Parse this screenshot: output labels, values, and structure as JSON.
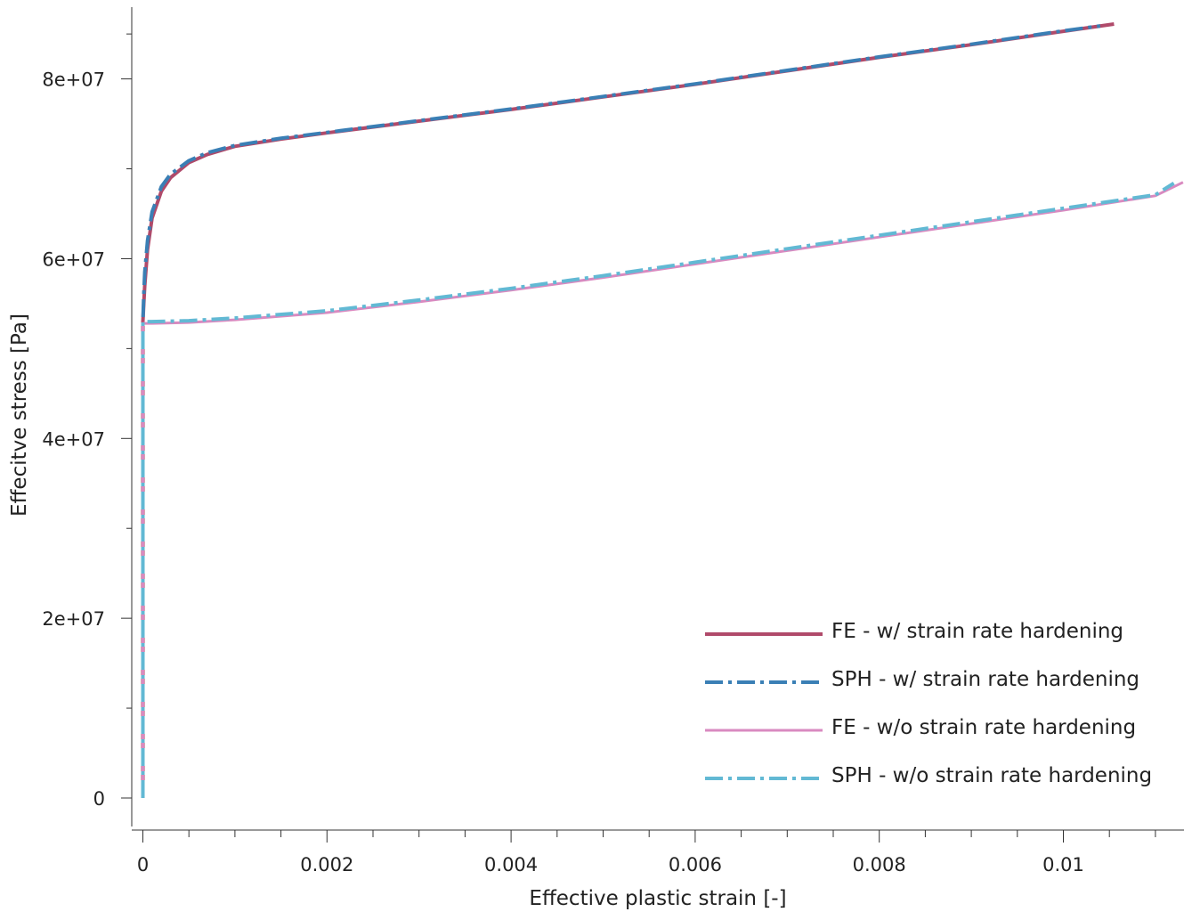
{
  "chart_data": {
    "type": "line",
    "title": "",
    "xlabel": "Effective plastic strain [-]",
    "ylabel": "Effecitve stress [Pa]",
    "xlim": [
      0,
      0.0113
    ],
    "ylim": [
      -3000000,
      88000000
    ],
    "x_ticks": [
      0,
      0.002,
      0.004,
      0.006,
      0.008,
      0.01
    ],
    "x_tick_labels": [
      "0",
      "0.002",
      "0.004",
      "0.006",
      "0.008",
      "0.01"
    ],
    "y_ticks": [
      0,
      20000000,
      40000000,
      60000000,
      80000000
    ],
    "y_tick_labels": [
      "0",
      "2e+07",
      "4e+07",
      "6e+07",
      "8e+07"
    ],
    "grid": false,
    "legend_position": "bottom-right",
    "series": [
      {
        "name": "FE - w/ strain rate hardening",
        "color": "#b04a6a",
        "style": "solid",
        "width": 4,
        "x": [
          0,
          0,
          1e-05,
          2e-05,
          5e-05,
          0.0001,
          0.0002,
          0.0003,
          0.0005,
          0.0007,
          0.001,
          0.0015,
          0.002,
          0.003,
          0.004,
          0.005,
          0.006,
          0.007,
          0.008,
          0.009,
          0.01,
          0.01055
        ],
        "y": [
          0,
          53000000,
          55000000,
          57000000,
          61000000,
          64500000,
          67500000,
          69000000,
          70700000,
          71600000,
          72500000,
          73300000,
          74000000,
          75300000,
          76600000,
          78000000,
          79400000,
          80900000,
          82400000,
          83800000,
          85300000,
          86100000
        ]
      },
      {
        "name": "SPH - w/ strain rate hardening",
        "color": "#3a7fb5",
        "style": "dashdot",
        "width": 4,
        "x": [
          0,
          0,
          1e-05,
          2e-05,
          5e-05,
          0.0001,
          0.0002,
          0.0003,
          0.0005,
          0.0007,
          0.001,
          0.0015,
          0.002,
          0.003,
          0.004,
          0.005,
          0.006,
          0.007,
          0.008,
          0.009,
          0.01,
          0.0104
        ],
        "y": [
          0,
          53000000,
          56000000,
          58500000,
          62000000,
          65200000,
          68000000,
          69400000,
          70900000,
          71800000,
          72600000,
          73400000,
          74050000,
          75350000,
          76650000,
          78050000,
          79450000,
          80950000,
          82450000,
          83850000,
          85350000,
          85900000
        ]
      },
      {
        "name": "FE - w/o strain rate hardening",
        "color": "#d98ac0",
        "style": "solid",
        "width": 3,
        "x": [
          0,
          0,
          0.0001,
          0.0005,
          0.001,
          0.002,
          0.003,
          0.004,
          0.005,
          0.006,
          0.007,
          0.008,
          0.009,
          0.01,
          0.011,
          0.0113
        ],
        "y": [
          0,
          52800000,
          52800000,
          52900000,
          53200000,
          54000000,
          55200000,
          56500000,
          57900000,
          59400000,
          60900000,
          62400000,
          63900000,
          65400000,
          67000000,
          68500000
        ]
      },
      {
        "name": "SPH - w/o strain rate hardening",
        "color": "#62b9d4",
        "style": "dashdot",
        "width": 4,
        "x": [
          0,
          0,
          0.0001,
          0.0005,
          0.001,
          0.002,
          0.003,
          0.004,
          0.005,
          0.006,
          0.007,
          0.008,
          0.009,
          0.01,
          0.011,
          0.0112
        ],
        "y": [
          0,
          53000000,
          53000000,
          53100000,
          53400000,
          54200000,
          55400000,
          56700000,
          58100000,
          59600000,
          61100000,
          62600000,
          64100000,
          65600000,
          67100000,
          68400000
        ]
      }
    ]
  }
}
